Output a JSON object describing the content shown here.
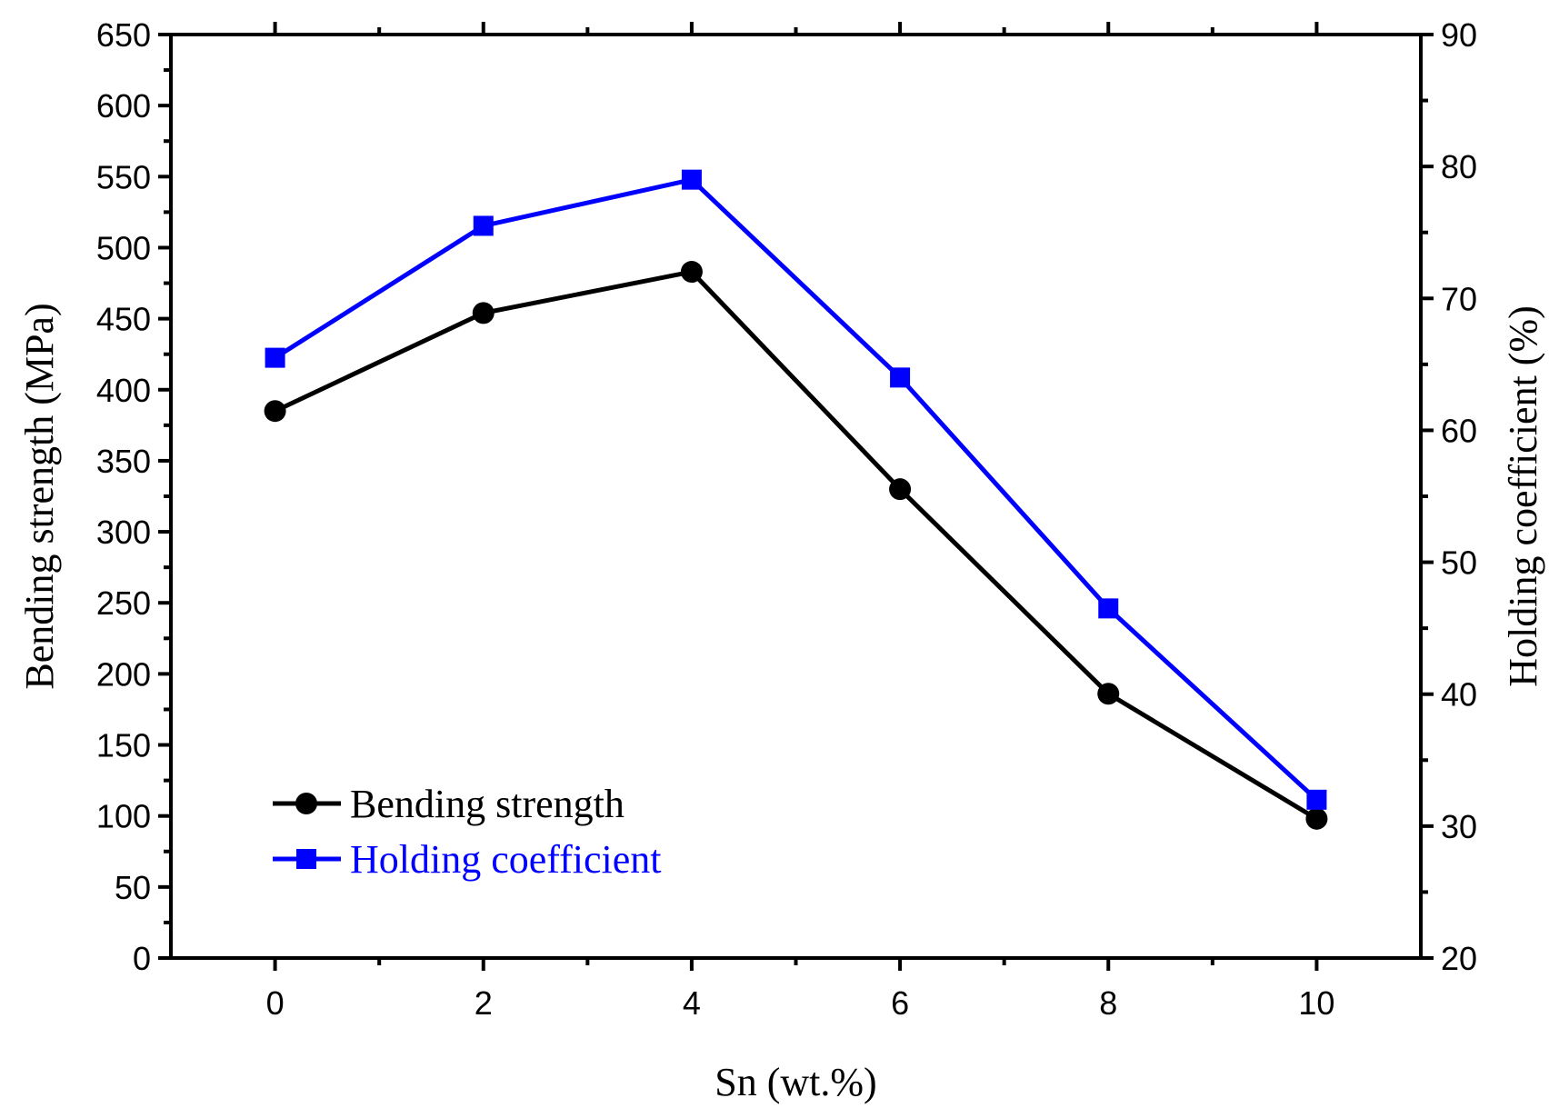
{
  "chart_data": {
    "type": "line",
    "xlabel": "Sn (wt.%)",
    "ylabel": "Bending strength (MPa)",
    "y2label": "Holding coefficient (%)",
    "xlim": [
      -1,
      11
    ],
    "ylim": [
      0,
      650
    ],
    "y2lim": [
      20,
      90
    ],
    "x_ticks": [
      0,
      2,
      4,
      6,
      8,
      10
    ],
    "y_ticks": [
      0,
      50,
      100,
      150,
      200,
      250,
      300,
      350,
      400,
      450,
      500,
      550,
      600,
      650
    ],
    "y2_ticks": [
      20,
      30,
      40,
      50,
      60,
      70,
      80,
      90
    ],
    "legend_position": "bottom-left",
    "series": [
      {
        "name": "Bending strength",
        "axis": "left",
        "color": "#000000",
        "marker": "circle",
        "x": [
          0,
          2,
          4,
          6,
          8,
          10
        ],
        "values": [
          385,
          454,
          483,
          330,
          186,
          98
        ]
      },
      {
        "name": "Holding coefficient",
        "axis": "right",
        "color": "#0000ff",
        "marker": "square",
        "x": [
          0,
          2,
          4,
          6,
          8,
          10
        ],
        "values": [
          65.5,
          75.5,
          79,
          64,
          46.5,
          32
        ]
      }
    ]
  }
}
